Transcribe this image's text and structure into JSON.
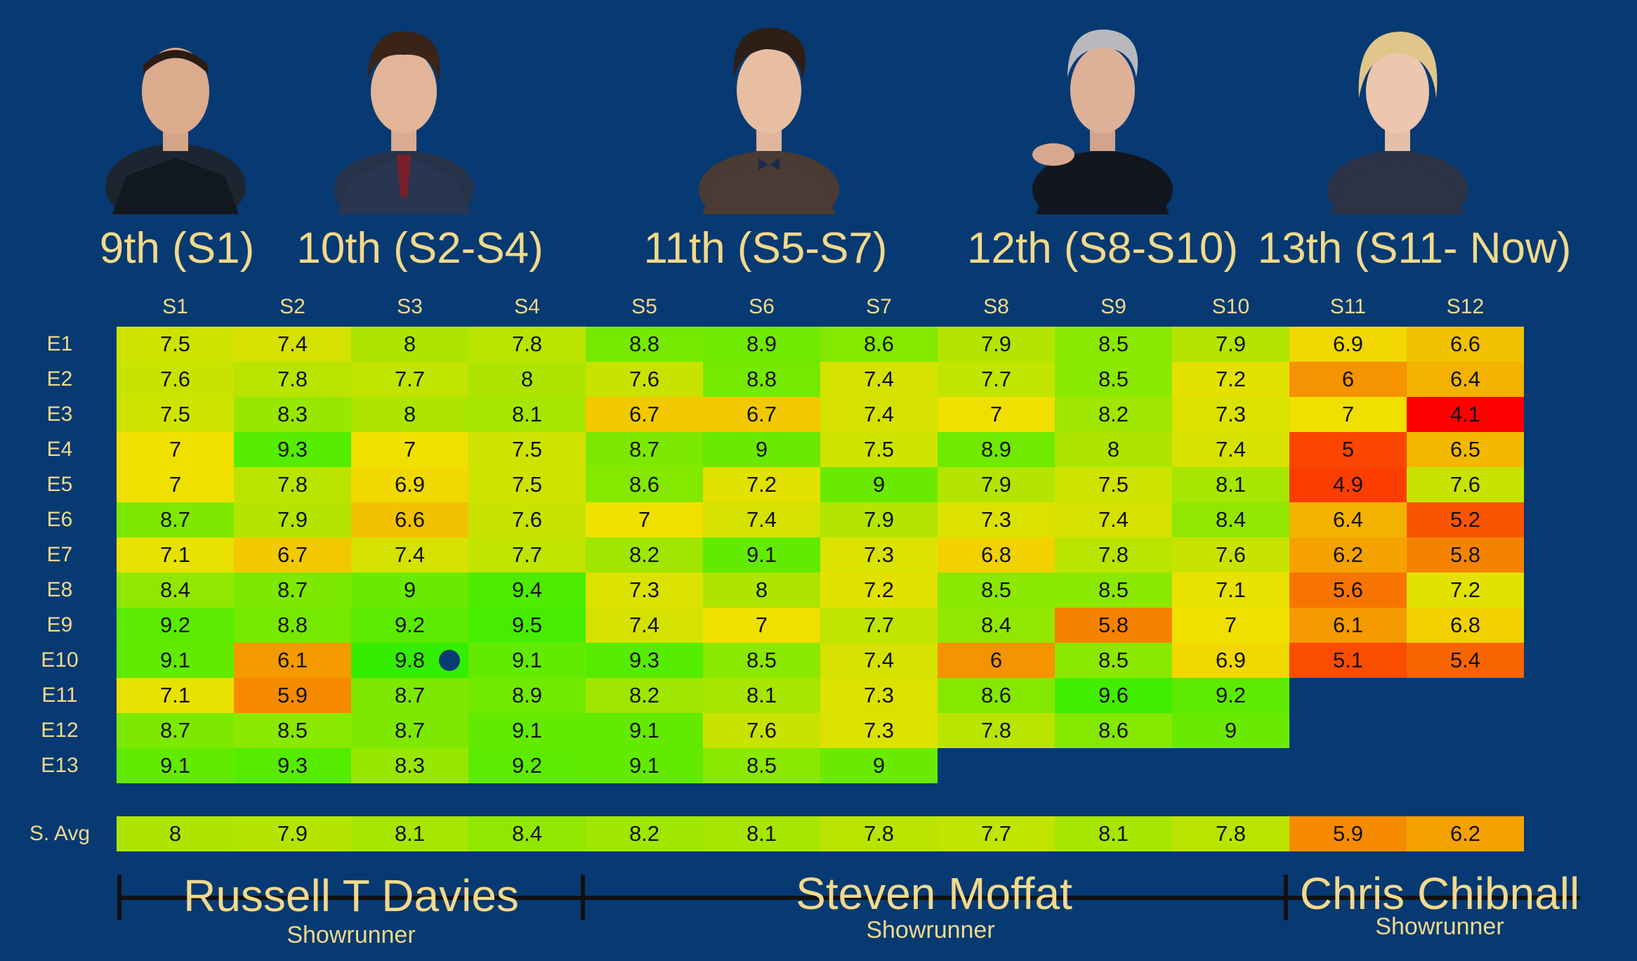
{
  "doctors": [
    {
      "label": "9th (S1)",
      "portrait": "portrait-9th-doctor"
    },
    {
      "label": "10th (S2-S4)",
      "portrait": "portrait-10th-doctor"
    },
    {
      "label": "11th (S5-S7)",
      "portrait": "portrait-11th-doctor"
    },
    {
      "label": "12th (S8-S10)",
      "portrait": "portrait-12th-doctor"
    },
    {
      "label": "13th (S11- Now)",
      "portrait": "portrait-13th-doctor"
    }
  ],
  "chart_data": {
    "type": "heatmap",
    "columns": [
      "S1",
      "S2",
      "S3",
      "S4",
      "S5",
      "S6",
      "S7",
      "S8",
      "S9",
      "S10",
      "S11",
      "S12"
    ],
    "rows": [
      "E1",
      "E2",
      "E3",
      "E4",
      "E5",
      "E6",
      "E7",
      "E8",
      "E9",
      "E10",
      "E11",
      "E12",
      "E13"
    ],
    "values": [
      [
        "7.5",
        "7.4",
        "8",
        "7.8",
        "8.8",
        "8.9",
        "8.6",
        "7.9",
        "8.5",
        "7.9",
        "6.9",
        "6.6"
      ],
      [
        "7.6",
        "7.8",
        "7.7",
        "8",
        "7.6",
        "8.8",
        "7.4",
        "7.7",
        "8.5",
        "7.2",
        "6",
        "6.4"
      ],
      [
        "7.5",
        "8.3",
        "8",
        "8.1",
        "6.7",
        "6.7",
        "7.4",
        "7",
        "8.2",
        "7.3",
        "7",
        "4.1"
      ],
      [
        "7",
        "9.3",
        "7",
        "7.5",
        "8.7",
        "9",
        "7.5",
        "8.9",
        "8",
        "7.4",
        "5",
        "6.5"
      ],
      [
        "7",
        "7.8",
        "6.9",
        "7.5",
        "8.6",
        "7.2",
        "9",
        "7.9",
        "7.5",
        "8.1",
        "4.9",
        "7.6"
      ],
      [
        "8.7",
        "7.9",
        "6.6",
        "7.6",
        "7",
        "7.4",
        "7.9",
        "7.3",
        "7.4",
        "8.4",
        "6.4",
        "5.2"
      ],
      [
        "7.1",
        "6.7",
        "7.4",
        "7.7",
        "8.2",
        "9.1",
        "7.3",
        "6.8",
        "7.8",
        "7.6",
        "6.2",
        "5.8"
      ],
      [
        "8.4",
        "8.7",
        "9",
        "9.4",
        "7.3",
        "8",
        "7.2",
        "8.5",
        "8.5",
        "7.1",
        "5.6",
        "7.2"
      ],
      [
        "9.2",
        "8.8",
        "9.2",
        "9.5",
        "7.4",
        "7",
        "7.7",
        "8.4",
        "5.8",
        "7",
        "6.1",
        "6.8"
      ],
      [
        "9.1",
        "6.1",
        "9.8",
        "9.1",
        "9.3",
        "8.5",
        "7.4",
        "6",
        "8.5",
        "6.9",
        "5.1",
        "5.4"
      ],
      [
        "7.1",
        "5.9",
        "8.7",
        "8.9",
        "8.2",
        "8.1",
        "7.3",
        "8.6",
        "9.6",
        "9.2",
        null,
        null
      ],
      [
        "8.7",
        "8.5",
        "8.7",
        "9.1",
        "9.1",
        "7.6",
        "7.3",
        "7.8",
        "8.6",
        "9",
        null,
        null
      ],
      [
        "9.1",
        "9.3",
        "8.3",
        "9.2",
        "9.1",
        "8.5",
        "9",
        null,
        null,
        null,
        null,
        null
      ]
    ],
    "average_label": "S. Avg",
    "averages": [
      "8",
      "7.9",
      "8.1",
      "8.4",
      "8.2",
      "8.1",
      "7.8",
      "7.7",
      "8.1",
      "7.8",
      "5.9",
      "6.2"
    ],
    "color_scale": {
      "low": "#ff0000",
      "mid": "#f0e000",
      "high": "#33ee00"
    },
    "highlight": {
      "row": "E10",
      "column": "S3",
      "marker_color": "#0a3b73"
    }
  },
  "showrunners": [
    {
      "name": "Russell T Davies",
      "subtitle": "Showrunner",
      "columns": [
        "S1",
        "S4"
      ]
    },
    {
      "name": "Steven Moffat",
      "subtitle": "Showrunner",
      "columns": [
        "S5",
        "S10"
      ]
    },
    {
      "name": "Chris Chibnall",
      "subtitle": "Showrunner",
      "columns": [
        "S11",
        "S12"
      ]
    }
  ],
  "colors": {
    "background": "#073a72",
    "text": "#f2d98b"
  }
}
